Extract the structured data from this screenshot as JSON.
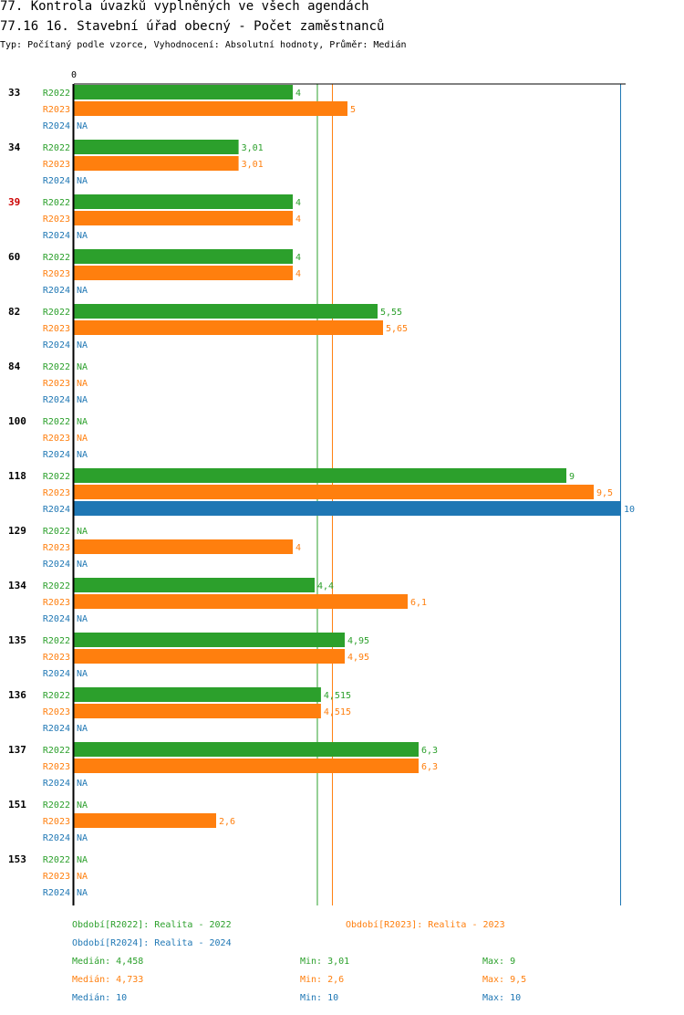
{
  "header": {
    "title": "77. Kontrola úvazků vyplněných ve všech agendách",
    "subtitle": "77.16 16. Stavební úřad obecný - Počet zaměstnanců",
    "type_line": "Typ: Počítaný podle vzorce, Vyhodnocení: Absolutní hodnoty, Průměr: Medián"
  },
  "colors": {
    "R2022": "#2ca02c",
    "R2023": "#ff7f0e",
    "R2024": "#1f77b4",
    "highlight": "#cc0000",
    "axis": "#000000"
  },
  "chart_data": {
    "type": "bar",
    "orientation": "horizontal",
    "axis_zero_label": "0",
    "xlim": [
      0,
      10
    ],
    "series_names": [
      "R2022",
      "R2023",
      "R2024"
    ],
    "na_label": "NA",
    "groups": [
      {
        "name": "33",
        "highlight": false,
        "values": [
          4,
          5,
          null
        ],
        "labels": [
          "4",
          "5",
          "NA"
        ]
      },
      {
        "name": "34",
        "highlight": false,
        "values": [
          3.01,
          3.01,
          null
        ],
        "labels": [
          "3,01",
          "3,01",
          "NA"
        ]
      },
      {
        "name": "39",
        "highlight": true,
        "values": [
          4,
          4,
          null
        ],
        "labels": [
          "4",
          "4",
          "NA"
        ]
      },
      {
        "name": "60",
        "highlight": false,
        "values": [
          4,
          4,
          null
        ],
        "labels": [
          "4",
          "4",
          "NA"
        ]
      },
      {
        "name": "82",
        "highlight": false,
        "values": [
          5.55,
          5.65,
          null
        ],
        "labels": [
          "5,55",
          "5,65",
          "NA"
        ]
      },
      {
        "name": "84",
        "highlight": false,
        "values": [
          null,
          null,
          null
        ],
        "labels": [
          "NA",
          "NA",
          "NA"
        ]
      },
      {
        "name": "100",
        "highlight": false,
        "values": [
          null,
          null,
          null
        ],
        "labels": [
          "NA",
          "NA",
          "NA"
        ]
      },
      {
        "name": "118",
        "highlight": false,
        "values": [
          9,
          9.5,
          10
        ],
        "labels": [
          "9",
          "9,5",
          "10"
        ]
      },
      {
        "name": "129",
        "highlight": false,
        "values": [
          null,
          4,
          null
        ],
        "labels": [
          "NA",
          "4",
          "NA"
        ]
      },
      {
        "name": "134",
        "highlight": false,
        "values": [
          4.4,
          6.1,
          null
        ],
        "labels": [
          "4,4",
          "6,1",
          "NA"
        ]
      },
      {
        "name": "135",
        "highlight": false,
        "values": [
          4.95,
          4.95,
          null
        ],
        "labels": [
          "4,95",
          "4,95",
          "NA"
        ]
      },
      {
        "name": "136",
        "highlight": false,
        "values": [
          4.515,
          4.515,
          null
        ],
        "labels": [
          "4,515",
          "4,515",
          "NA"
        ]
      },
      {
        "name": "137",
        "highlight": false,
        "values": [
          6.3,
          6.3,
          null
        ],
        "labels": [
          "6,3",
          "6,3",
          "NA"
        ]
      },
      {
        "name": "151",
        "highlight": false,
        "values": [
          null,
          2.6,
          null
        ],
        "labels": [
          "NA",
          "2,6",
          "NA"
        ]
      },
      {
        "name": "153",
        "highlight": false,
        "values": [
          null,
          null,
          null
        ],
        "labels": [
          "NA",
          "NA",
          "NA"
        ]
      }
    ],
    "median_lines": {
      "R2022": 4.458,
      "R2023": 4.733,
      "R2024": 10
    }
  },
  "legend": {
    "period_2022": "Období[R2022]: Realita - 2022",
    "period_2023": "Období[R2023]: Realita - 2023",
    "period_2024": "Období[R2024]: Realita - 2024",
    "stats": [
      {
        "series": "R2022",
        "median": "Medián: 4,458",
        "min": "Min: 3,01",
        "max": "Max: 9"
      },
      {
        "series": "R2023",
        "median": "Medián: 4,733",
        "min": "Min: 2,6",
        "max": "Max: 9,5"
      },
      {
        "series": "R2024",
        "median": "Medián: 10",
        "min": "Min: 10",
        "max": "Max: 10"
      }
    ]
  }
}
